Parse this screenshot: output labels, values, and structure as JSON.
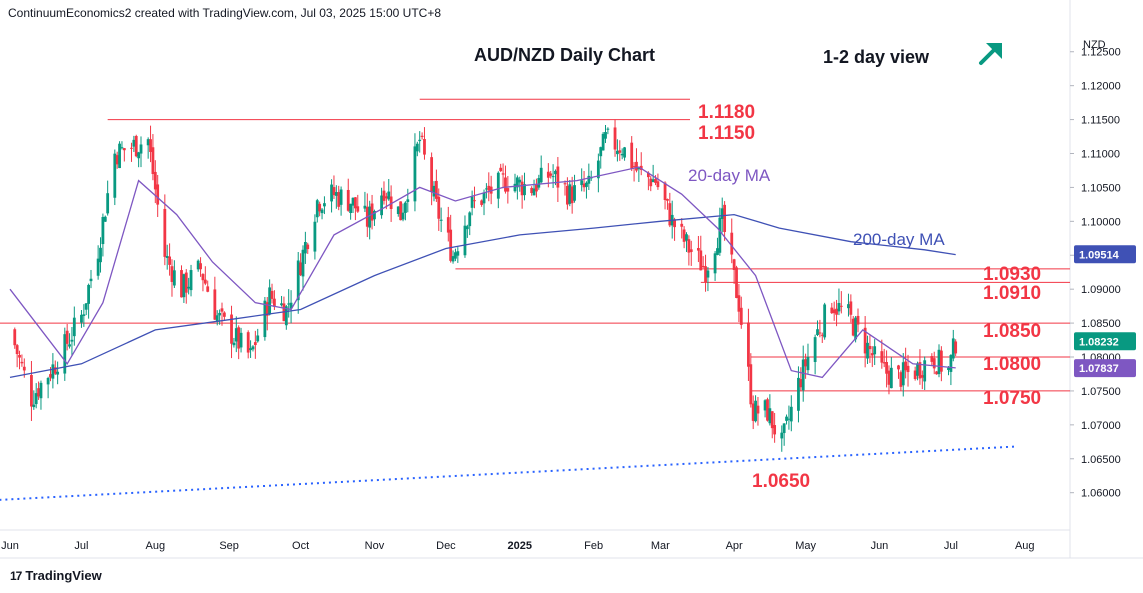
{
  "header": {
    "attribution": "ContinuumEconomics2 created with TradingView.com, Jul 03, 2025 15:00 UTC+8"
  },
  "footer": {
    "brand": "TradingView",
    "logo_text": "17"
  },
  "colors": {
    "up": "#089981",
    "down": "#f23645",
    "level": "#f23645",
    "ma20": "#7e57c2",
    "ma200": "#3f51b5",
    "trend": "#2962ff",
    "arrow": "#089981"
  },
  "chart_data": {
    "type": "candlestick",
    "title": "AUD/NZD Daily Chart",
    "subtitle": "1-2 day view",
    "view_arrow_icon": "up-right-arrow-icon",
    "currency": "NZD",
    "ylim": [
      1.0545,
      1.1285
    ],
    "y_ticks": [
      "1.12500",
      "1.12000",
      "1.11500",
      "1.11000",
      "1.10500",
      "1.10000",
      "1.09500",
      "1.09000",
      "1.08500",
      "1.08000",
      "1.07500",
      "1.07000",
      "1.06500",
      "1.06000"
    ],
    "x_ticks": [
      {
        "label": "Jun",
        "date": "2024-06-01"
      },
      {
        "label": "Jul",
        "date": "2024-07-01"
      },
      {
        "label": "Aug",
        "date": "2024-08-01"
      },
      {
        "label": "Sep",
        "date": "2024-09-01"
      },
      {
        "label": "Oct",
        "date": "2024-10-01"
      },
      {
        "label": "Nov",
        "date": "2024-11-01"
      },
      {
        "label": "Dec",
        "date": "2024-12-01"
      },
      {
        "label": "2025",
        "date": "2025-01-01"
      },
      {
        "label": "Feb",
        "date": "2025-02-01"
      },
      {
        "label": "Mar",
        "date": "2025-03-01"
      },
      {
        "label": "Apr",
        "date": "2025-04-01"
      },
      {
        "label": "May",
        "date": "2025-05-01"
      },
      {
        "label": "Jun",
        "date": "2025-06-01"
      },
      {
        "label": "Jul",
        "date": "2025-07-01"
      },
      {
        "label": "Aug",
        "date": "2025-08-01"
      }
    ],
    "x_range": [
      "2024-06-01",
      "2025-08-20"
    ],
    "last_close": "1.08232",
    "close_path": [
      [
        "2024-06-01",
        1.084
      ],
      [
        "2024-06-10",
        1.074
      ],
      [
        "2024-06-20",
        1.079
      ],
      [
        "2024-07-01",
        1.086
      ],
      [
        "2024-07-08",
        1.096
      ],
      [
        "2024-07-15",
        1.11
      ],
      [
        "2024-07-22",
        1.111
      ],
      [
        "2024-07-29",
        1.112
      ],
      [
        "2024-08-05",
        1.095
      ],
      [
        "2024-08-12",
        1.09
      ],
      [
        "2024-08-20",
        1.093
      ],
      [
        "2024-08-27",
        1.086
      ],
      [
        "2024-09-03",
        1.083
      ],
      [
        "2024-09-10",
        1.08
      ],
      [
        "2024-09-18",
        1.089
      ],
      [
        "2024-09-25",
        1.087
      ],
      [
        "2024-10-01",
        1.094
      ],
      [
        "2024-10-08",
        1.103
      ],
      [
        "2024-10-15",
        1.104
      ],
      [
        "2024-10-22",
        1.103
      ],
      [
        "2024-10-29",
        1.1
      ],
      [
        "2024-11-05",
        1.105
      ],
      [
        "2024-11-12",
        1.101
      ],
      [
        "2024-11-20",
        1.112
      ],
      [
        "2024-11-27",
        1.102
      ],
      [
        "2024-12-04",
        1.095
      ],
      [
        "2024-12-11",
        1.102
      ],
      [
        "2024-12-18",
        1.104
      ],
      [
        "2024-12-26",
        1.106
      ],
      [
        "2025-01-06",
        1.105
      ],
      [
        "2025-01-14",
        1.107
      ],
      [
        "2025-01-22",
        1.104
      ],
      [
        "2025-01-30",
        1.105
      ],
      [
        "2025-02-06",
        1.112
      ],
      [
        "2025-02-13",
        1.111
      ],
      [
        "2025-02-20",
        1.107
      ],
      [
        "2025-02-27",
        1.106
      ],
      [
        "2025-03-06",
        1.1
      ],
      [
        "2025-03-13",
        1.096
      ],
      [
        "2025-03-20",
        1.093
      ],
      [
        "2025-03-27",
        1.1
      ],
      [
        "2025-04-03",
        1.088
      ],
      [
        "2025-04-09",
        1.072
      ],
      [
        "2025-04-15",
        1.072
      ],
      [
        "2025-04-21",
        1.067
      ],
      [
        "2025-04-28",
        1.076
      ],
      [
        "2025-05-05",
        1.083
      ],
      [
        "2025-05-12",
        1.088
      ],
      [
        "2025-05-19",
        1.086
      ],
      [
        "2025-05-26",
        1.082
      ],
      [
        "2025-06-02",
        1.078
      ],
      [
        "2025-06-09",
        1.077
      ],
      [
        "2025-06-16",
        1.078
      ],
      [
        "2025-06-23",
        1.08
      ],
      [
        "2025-06-30",
        1.078
      ],
      [
        "2025-07-03",
        1.0823
      ]
    ],
    "ma20": {
      "label": "20-day MA",
      "points": [
        [
          "2024-06-01",
          1.09
        ],
        [
          "2024-06-25",
          1.079
        ],
        [
          "2024-07-10",
          1.088
        ],
        [
          "2024-07-25",
          1.106
        ],
        [
          "2024-08-10",
          1.101
        ],
        [
          "2024-08-25",
          1.094
        ],
        [
          "2024-09-12",
          1.088
        ],
        [
          "2024-09-27",
          1.087
        ],
        [
          "2024-10-15",
          1.098
        ],
        [
          "2024-11-05",
          1.102
        ],
        [
          "2024-11-20",
          1.105
        ],
        [
          "2024-12-05",
          1.103
        ],
        [
          "2024-12-25",
          1.105
        ],
        [
          "2025-01-25",
          1.106
        ],
        [
          "2025-02-20",
          1.108
        ],
        [
          "2025-03-10",
          1.104
        ],
        [
          "2025-03-25",
          1.099
        ],
        [
          "2025-04-10",
          1.092
        ],
        [
          "2025-04-25",
          1.078
        ],
        [
          "2025-05-08",
          1.077
        ],
        [
          "2025-05-25",
          1.084
        ],
        [
          "2025-06-15",
          1.079
        ],
        [
          "2025-07-03",
          1.0784
        ]
      ],
      "last_value": "1.07837"
    },
    "ma200": {
      "label": "200-day MA",
      "points": [
        [
          "2024-06-01",
          1.077
        ],
        [
          "2024-07-01",
          1.079
        ],
        [
          "2024-08-01",
          1.084
        ],
        [
          "2024-09-01",
          1.0855
        ],
        [
          "2024-10-01",
          1.087
        ],
        [
          "2024-11-01",
          1.092
        ],
        [
          "2024-12-01",
          1.096
        ],
        [
          "2025-01-01",
          1.098
        ],
        [
          "2025-02-01",
          1.099
        ],
        [
          "2025-03-01",
          1.1
        ],
        [
          "2025-04-01",
          1.101
        ],
        [
          "2025-04-20",
          1.099
        ],
        [
          "2025-05-20",
          1.097
        ],
        [
          "2025-06-20",
          1.0958
        ],
        [
          "2025-07-03",
          1.0951
        ]
      ],
      "last_value": "1.09514"
    },
    "trendline": {
      "style": "dotted",
      "from": [
        "2024-05-20",
        1.0588
      ],
      "to": [
        "2025-07-28",
        1.0668
      ]
    },
    "levels": [
      {
        "label": "1.1180",
        "value": 1.118,
        "from": "2024-11-20"
      },
      {
        "label": "1.1150",
        "value": 1.115,
        "from": "2024-07-12"
      },
      {
        "label": "1.0930",
        "value": 1.093,
        "from": "2024-12-05"
      },
      {
        "label": "1.0910",
        "value": 1.091,
        "from": "2025-03-18"
      },
      {
        "label": "1.0850",
        "value": 1.085,
        "from": "2024-05-25"
      },
      {
        "label": "1.0800",
        "value": 1.08,
        "from": "2025-04-08"
      },
      {
        "label": "1.0750",
        "value": 1.075,
        "from": "2025-04-08"
      },
      {
        "label": "1.0650",
        "value": 1.065,
        "from": null
      }
    ]
  }
}
